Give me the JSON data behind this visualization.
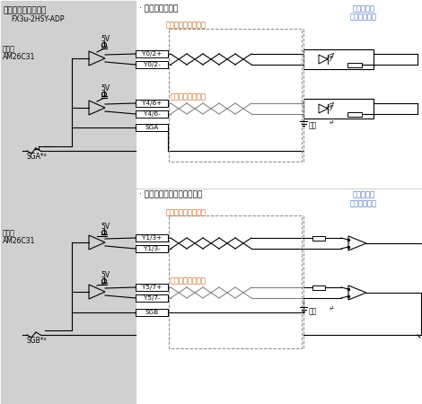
{
  "bg_color": "#d0d0d0",
  "white": "#ffffff",
  "black": "#000000",
  "blue_text": "#4472c4",
  "orange_text": "#d06020",
  "title_line1": "高速输出特殊适配器",
  "title_line2": "FX3u-2HSY-ADP",
  "label_xdy": "相当于",
  "label_AM26C31": "AM26C31",
  "label_5V": "5V",
  "label_SGA_star2": "SGA*²",
  "label_SGB_star2": "SGB*²",
  "label_SGA": "SGA",
  "label_SGB": "SGB",
  "label_connect_optical": "· 连接在光耦上时",
  "label_connect_diff": "· 连接在差动线性接收器上时",
  "label_pulse1": "脉冲串／正转脉冲串",
  "label_dir1": "方向／反转脉冲串",
  "label_pulse2": "脉冲串／正转脉冲串",
  "label_dir2": "方向／反转脉冲串",
  "label_servo1": "伺服放大器",
  "label_drive1": "（驱动单元）",
  "label_servo2": "伺服放大器",
  "label_drive2": "（驱动单元）",
  "label_Y0_2p": "Y0/2+",
  "label_Y0_2m": "Y0/2-",
  "label_Y4_6p": "Y4/6+",
  "label_Y4_6m": "Y4/6-",
  "label_Y1_3p": "Y1/3+",
  "label_Y1_3m": "Y1/3-",
  "label_Y5_7p": "Y5/7+",
  "label_Y5_7m": "Y5/7-",
  "label_ground": "接地",
  "label_star1": "*¹"
}
